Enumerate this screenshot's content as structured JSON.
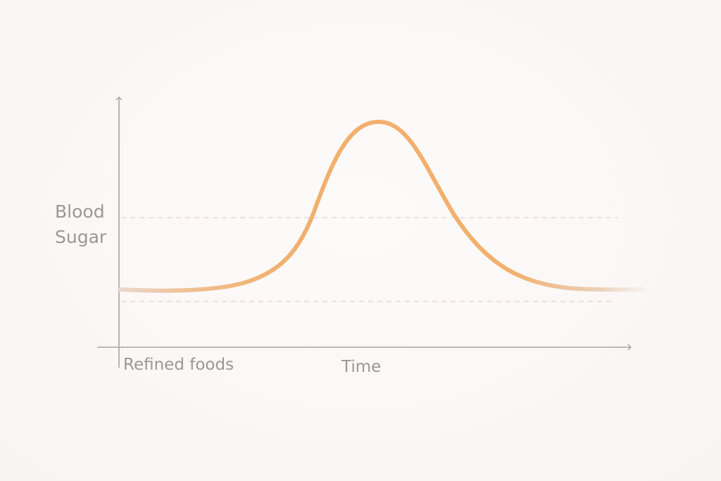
{
  "diagram": {
    "y_axis_label": "Blood\nSugar",
    "x_origin_label": "Refined foods",
    "x_axis_label": "Time"
  },
  "colors": {
    "curve": "#f2b06e",
    "axis": "#a8a6a4",
    "guide_line": "#ddd3cf",
    "text": "#9a9896"
  }
}
